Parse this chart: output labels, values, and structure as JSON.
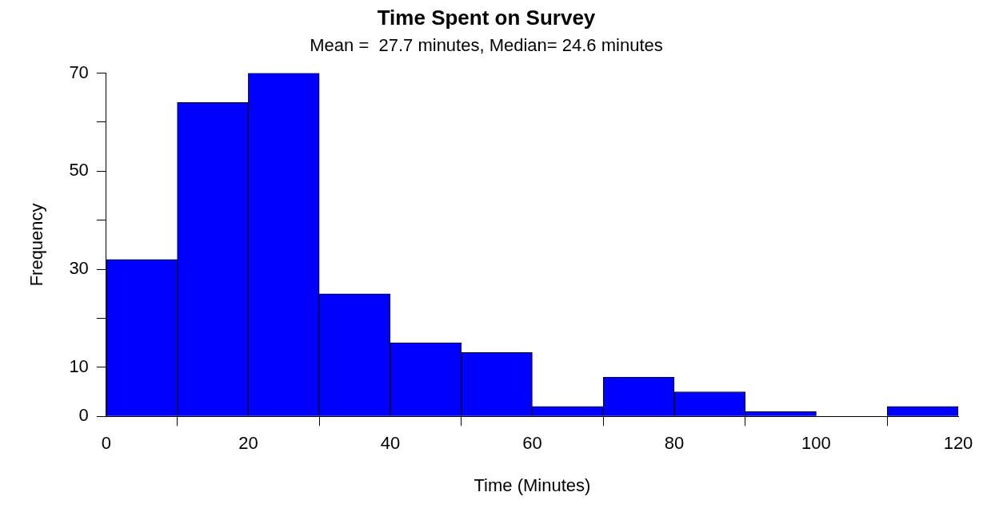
{
  "chart_data": {
    "type": "histogram",
    "title": "Time Spent on Survey",
    "subtitle": "Mean =  27.7 minutes, Median= 24.6 minutes",
    "xlabel": "Time (Minutes)",
    "ylabel": "Frequency",
    "bins": [
      0,
      10,
      20,
      30,
      40,
      50,
      60,
      70,
      80,
      90,
      100,
      110,
      120
    ],
    "values": [
      32,
      64,
      70,
      25,
      15,
      13,
      2,
      8,
      5,
      1,
      0,
      2
    ],
    "color": "#0000ff",
    "xlim": [
      0,
      120
    ],
    "xticks": [
      0,
      20,
      40,
      60,
      80,
      100,
      120
    ],
    "ylim": [
      0,
      70
    ],
    "yticks": [
      0,
      10,
      {
        "value": 20,
        "label": null
      },
      30,
      {
        "value": 40,
        "label": null
      },
      50,
      {
        "value": 60,
        "label": null
      },
      70
    ],
    "grid": false,
    "legend": false
  }
}
